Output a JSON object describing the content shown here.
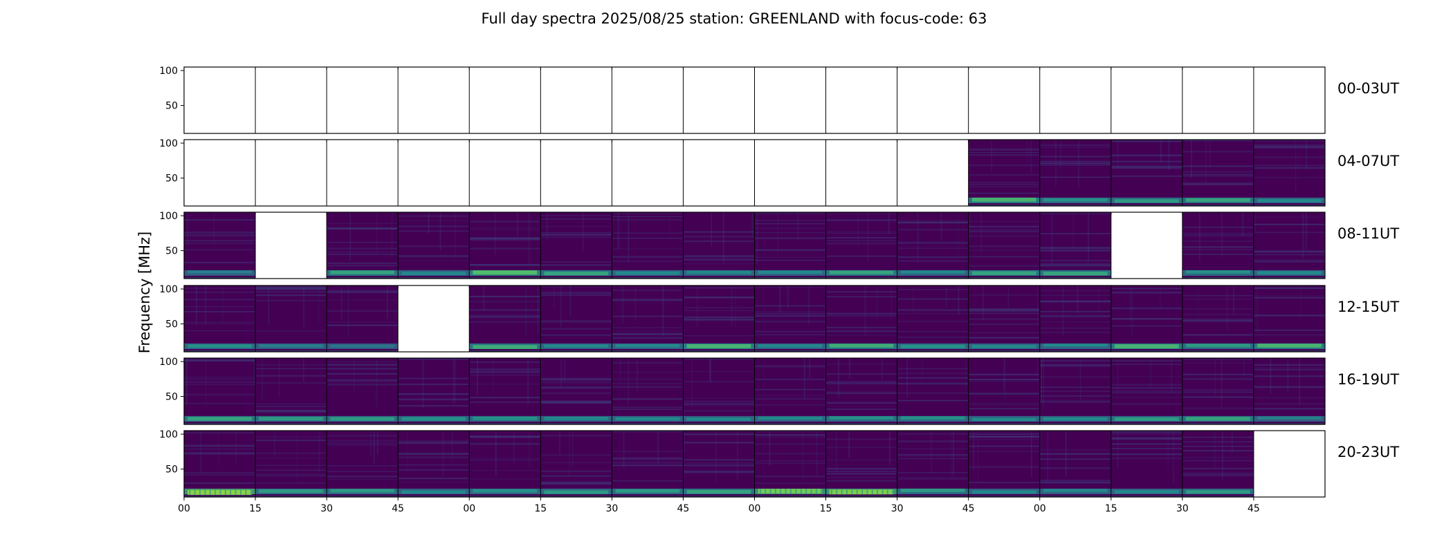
{
  "chart_data": {
    "type": "heatmap",
    "title": "Full day spectra 2025/08/25 station: GREENLAND with focus-code: 63",
    "ylabel": "Frequency [MHz]",
    "xlabel": "",
    "y_ticks": [
      "100",
      "50"
    ],
    "ylim": [
      10,
      105
    ],
    "x_ticks": [
      "00",
      "15",
      "30",
      "45",
      "00",
      "15",
      "30",
      "45",
      "00",
      "15",
      "30",
      "45",
      "00",
      "15",
      "30",
      "45"
    ],
    "rows": [
      {
        "label": "00-03UT",
        "has_data": [
          0,
          0,
          0,
          0,
          0,
          0,
          0,
          0,
          0,
          0,
          0,
          0,
          0,
          0,
          0,
          0
        ],
        "band_intensity": [
          0,
          0,
          0,
          0,
          0,
          0,
          0,
          0,
          0,
          0,
          0,
          0,
          0,
          0,
          0,
          0
        ]
      },
      {
        "label": "04-07UT",
        "has_data": [
          0,
          0,
          0,
          0,
          0,
          0,
          0,
          0,
          0,
          0,
          0,
          1,
          1,
          1,
          1,
          1
        ],
        "band_intensity": [
          0,
          0,
          0,
          0,
          0,
          0,
          0,
          0,
          0,
          0,
          0,
          0.55,
          0.35,
          0.4,
          0.45,
          0.3
        ]
      },
      {
        "label": "08-11UT",
        "has_data": [
          1,
          0,
          1,
          1,
          1,
          1,
          1,
          1,
          1,
          1,
          1,
          1,
          1,
          0,
          1,
          1
        ],
        "band_intensity": [
          0.25,
          0,
          0.45,
          0.3,
          0.6,
          0.45,
          0.3,
          0.3,
          0.3,
          0.45,
          0.3,
          0.45,
          0.45,
          0,
          0.35,
          0.3
        ]
      },
      {
        "label": "12-15UT",
        "has_data": [
          1,
          1,
          1,
          0,
          1,
          1,
          1,
          1,
          1,
          1,
          1,
          1,
          1,
          1,
          1,
          1
        ],
        "band_intensity": [
          0.35,
          0.25,
          0.2,
          0,
          0.5,
          0.3,
          0.3,
          0.55,
          0.3,
          0.5,
          0.35,
          0.3,
          0.3,
          0.55,
          0.4,
          0.55
        ]
      },
      {
        "label": "16-19UT",
        "has_data": [
          1,
          1,
          1,
          1,
          1,
          1,
          1,
          1,
          1,
          1,
          1,
          1,
          1,
          1,
          1,
          1
        ],
        "band_intensity": [
          0.45,
          0.4,
          0.4,
          0.35,
          0.35,
          0.3,
          0.3,
          0.3,
          0.3,
          0.35,
          0.35,
          0.3,
          0.3,
          0.4,
          0.45,
          0.25
        ]
      },
      {
        "label": "20-23UT",
        "has_data": [
          1,
          1,
          1,
          1,
          1,
          1,
          1,
          1,
          1,
          1,
          1,
          1,
          1,
          1,
          1,
          0
        ],
        "band_intensity": [
          0.85,
          0.4,
          0.4,
          0.3,
          0.35,
          0.4,
          0.4,
          0.45,
          0.75,
          0.8,
          0.4,
          0.3,
          0.3,
          0.3,
          0.4,
          0
        ]
      }
    ],
    "colormap": "viridis",
    "colors": {
      "background": "#440154",
      "dark": "#3b0a5a",
      "mid": "#3b528b",
      "teal": "#21918c",
      "bright": "#5ec962",
      "yellow": "#b5de2b",
      "empty": "#ffffff",
      "frame": "#000000"
    }
  }
}
